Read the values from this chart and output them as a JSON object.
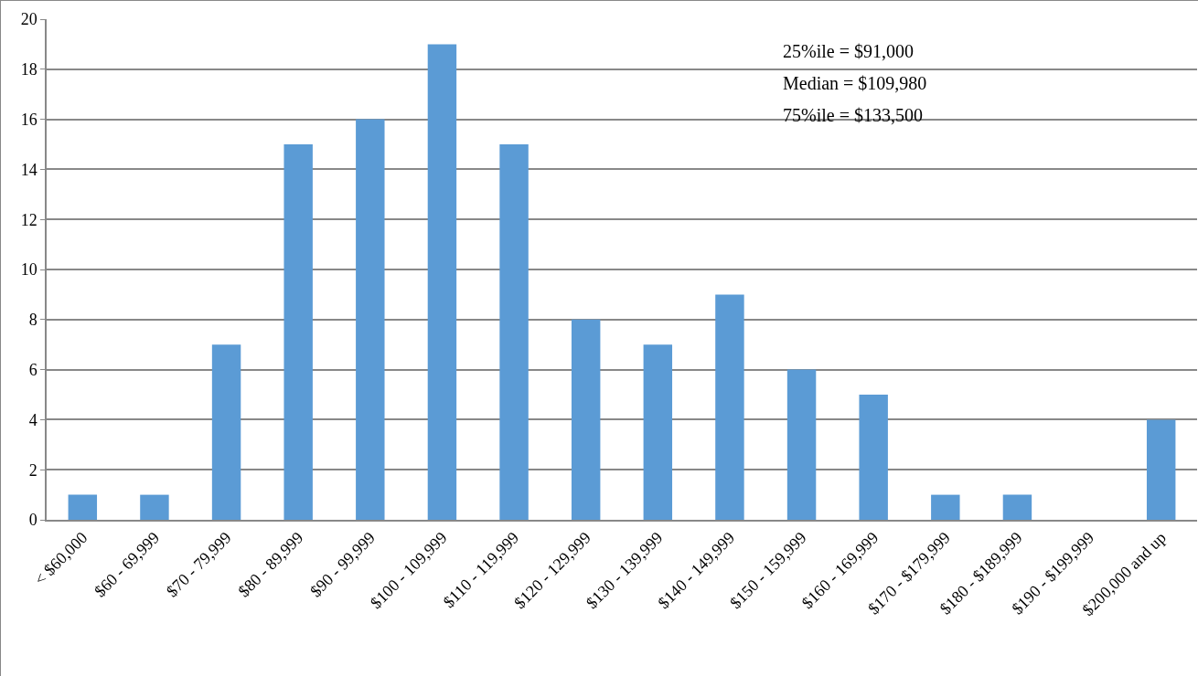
{
  "chart_data": {
    "type": "bar",
    "categories": [
      "< $60,000",
      "$60 - 69,999",
      "$70 - 79,999",
      "$80 - 89,999",
      "$90 - 99,999",
      "$100 - 109,999",
      "$110 - 119,999",
      "$120 - 129,999",
      "$130 - 139,999",
      "$140 - 149,999",
      "$150 - 159,999",
      "$160 - 169,999",
      "$170 - $179,999",
      "$180 - $189,999",
      "$190 - $199,999",
      "$200,000 and up"
    ],
    "values": [
      1,
      1,
      7,
      15,
      16,
      19,
      15,
      8,
      7,
      9,
      6,
      5,
      1,
      1,
      0,
      4
    ],
    "color": "#5b9bd5",
    "ylim": [
      0,
      20
    ],
    "yticks": [
      0,
      2,
      4,
      6,
      8,
      10,
      12,
      14,
      16,
      18,
      20
    ],
    "grid": "y",
    "annotations": [
      "25%ile = $91,000",
      "Median = $109,980",
      "75%ile = $133,500"
    ]
  }
}
